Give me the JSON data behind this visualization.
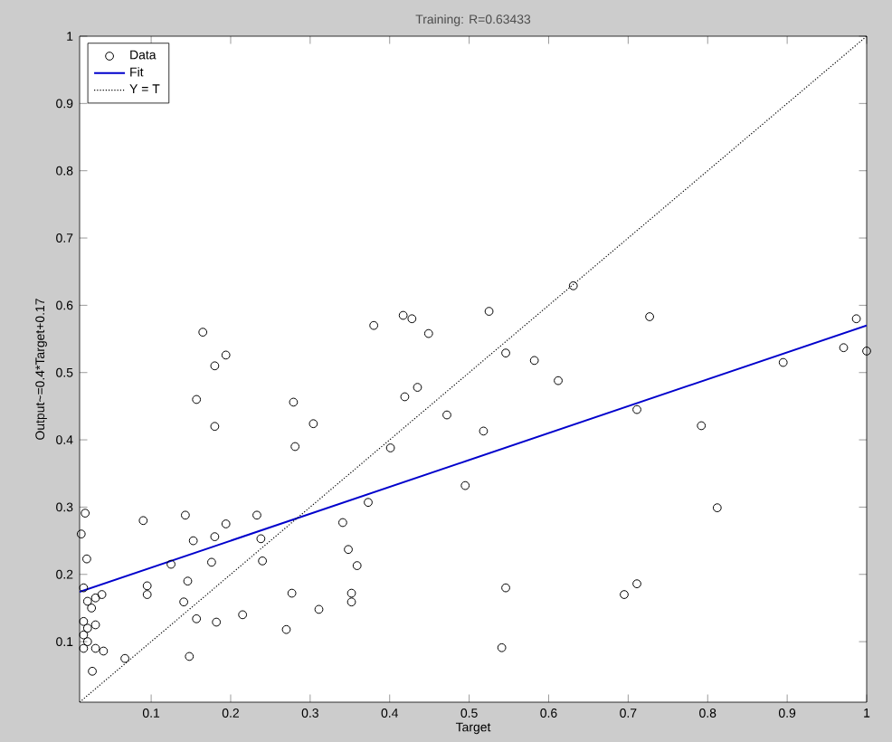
{
  "chart_data": {
    "type": "scatter",
    "title": "Training: R=0.63433",
    "xlabel": "Target",
    "ylabel": "Output~=0.4*Target+0.17",
    "xlim": [
      0.01,
      1.0
    ],
    "ylim": [
      0.01,
      1.0
    ],
    "xticks": [
      0.1,
      0.2,
      0.3,
      0.4,
      0.5,
      0.6,
      0.7,
      0.8,
      0.9,
      1
    ],
    "yticks": [
      0.1,
      0.2,
      0.3,
      0.4,
      0.5,
      0.6,
      0.7,
      0.8,
      0.9,
      1
    ],
    "legend": "top left",
    "grid": false,
    "series": [
      {
        "name": "Data",
        "marker": "circle",
        "color": "#000000",
        "x": [
          0.165,
          0.194,
          0.18,
          0.157,
          0.18,
          0.279,
          0.304,
          0.281,
          0.38,
          0.417,
          0.428,
          0.449,
          0.419,
          0.435,
          0.472,
          0.401,
          0.373,
          0.017,
          0.09,
          0.143,
          0.233,
          0.194,
          0.18,
          0.153,
          0.238,
          0.341,
          0.012,
          0.019,
          0.24,
          0.176,
          0.125,
          0.348,
          0.359,
          0.146,
          0.095,
          0.095,
          0.038,
          0.141,
          0.277,
          0.352,
          0.352,
          0.311,
          0.215,
          0.157,
          0.182,
          0.27,
          0.067,
          0.148,
          0.026,
          0.04,
          0.015,
          0.02,
          0.025,
          0.015,
          0.02,
          0.015,
          0.02,
          0.015,
          0.03,
          0.03,
          0.03,
          0.631,
          0.525,
          0.727,
          0.546,
          0.582,
          0.612,
          0.518,
          0.711,
          0.792,
          0.812,
          0.495,
          0.546,
          0.695,
          0.711,
          0.541,
          0.895,
          0.971,
          0.987,
          1.0
        ],
        "values": [
          0.56,
          0.526,
          0.51,
          0.46,
          0.42,
          0.456,
          0.424,
          0.39,
          0.57,
          0.585,
          0.58,
          0.558,
          0.464,
          0.478,
          0.437,
          0.388,
          0.307,
          0.291,
          0.28,
          0.288,
          0.288,
          0.275,
          0.256,
          0.25,
          0.253,
          0.277,
          0.26,
          0.223,
          0.22,
          0.218,
          0.215,
          0.237,
          0.213,
          0.19,
          0.183,
          0.17,
          0.17,
          0.159,
          0.172,
          0.172,
          0.159,
          0.148,
          0.14,
          0.134,
          0.129,
          0.118,
          0.075,
          0.078,
          0.056,
          0.086,
          0.18,
          0.16,
          0.15,
          0.13,
          0.12,
          0.11,
          0.1,
          0.09,
          0.125,
          0.09,
          0.165,
          0.629,
          0.591,
          0.583,
          0.529,
          0.518,
          0.488,
          0.413,
          0.445,
          0.421,
          0.299,
          0.332,
          0.18,
          0.17,
          0.186,
          0.091,
          0.515,
          0.537,
          0.58,
          0.532
        ]
      },
      {
        "name": "Fit",
        "type": "line",
        "color": "#0000cc",
        "line_style": "solid",
        "x": [
          0.01,
          1.0
        ],
        "values": [
          0.174,
          0.57
        ]
      },
      {
        "name": "Y = T",
        "type": "line",
        "color": "#000000",
        "line_style": "dotted",
        "x": [
          0.01,
          1.0
        ],
        "values": [
          0.01,
          1.0
        ]
      }
    ]
  }
}
